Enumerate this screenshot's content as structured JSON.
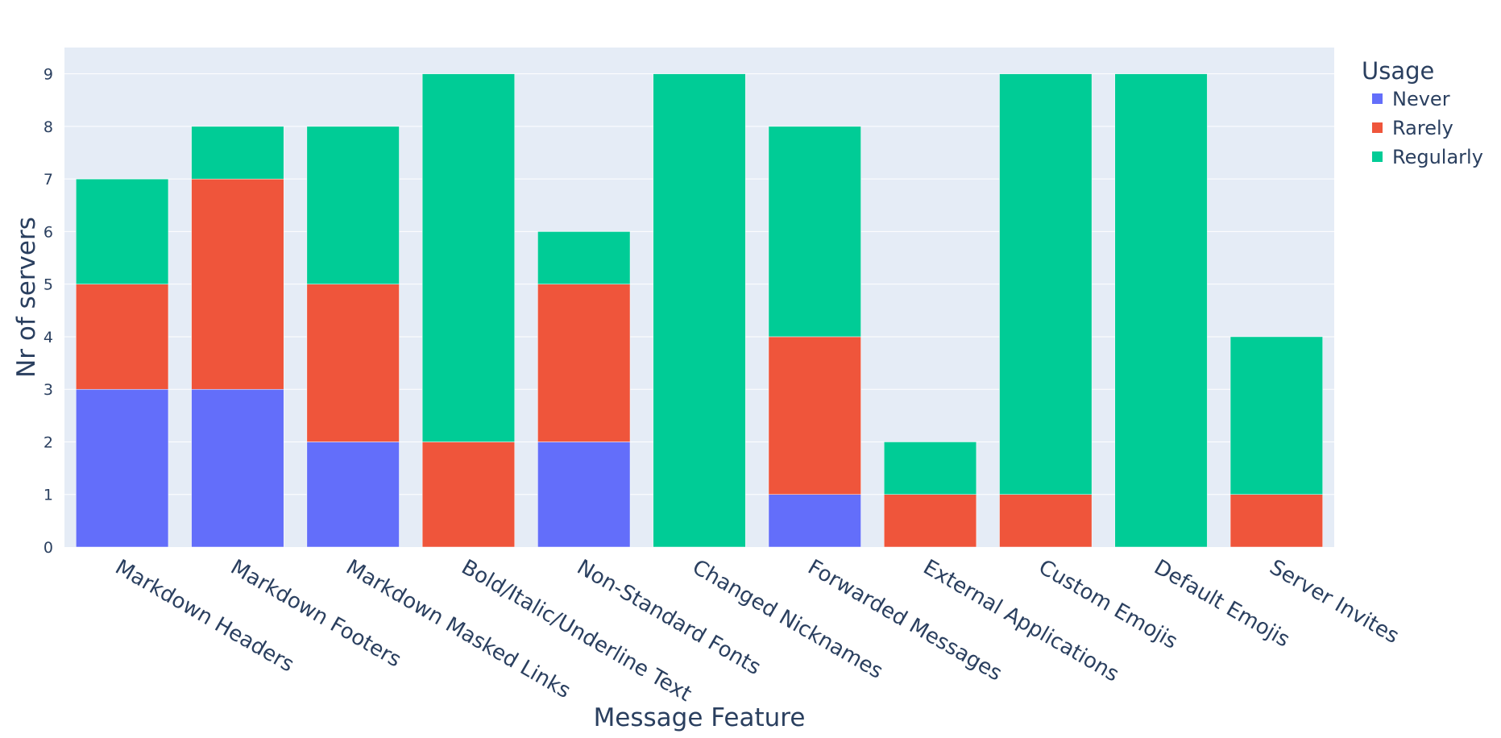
{
  "chart_data": {
    "type": "bar",
    "barmode": "stack",
    "title": "",
    "xlabel": "Message Feature",
    "ylabel": "Nr of servers",
    "ylim": [
      0,
      9.5
    ],
    "yticks": [
      0,
      1,
      2,
      3,
      4,
      5,
      6,
      7,
      8,
      9
    ],
    "grid": true,
    "legend_title": "Usage",
    "legend_position": "top-right outside",
    "categories": [
      "Markdown Headers",
      "Markdown Footers",
      "Markdown Masked Links",
      "Bold/Italic/Underline Text",
      "Non-Standard Fonts",
      "Changed Nicknames",
      "Forwarded Messages",
      "External Applications",
      "Custom Emojis",
      "Default Emojis",
      "Server Invites"
    ],
    "series": [
      {
        "name": "Never",
        "color": "#636efa",
        "values": [
          3,
          3,
          2,
          0,
          2,
          0,
          1,
          0,
          0,
          0,
          0
        ]
      },
      {
        "name": "Rarely",
        "color": "#ef553b",
        "values": [
          2,
          4,
          3,
          2,
          3,
          0,
          3,
          1,
          1,
          0,
          1
        ]
      },
      {
        "name": "Regularly",
        "color": "#00cc96",
        "values": [
          2,
          1,
          3,
          7,
          1,
          9,
          4,
          1,
          8,
          9,
          3
        ]
      }
    ],
    "plot_background": "#e5ecf6"
  }
}
